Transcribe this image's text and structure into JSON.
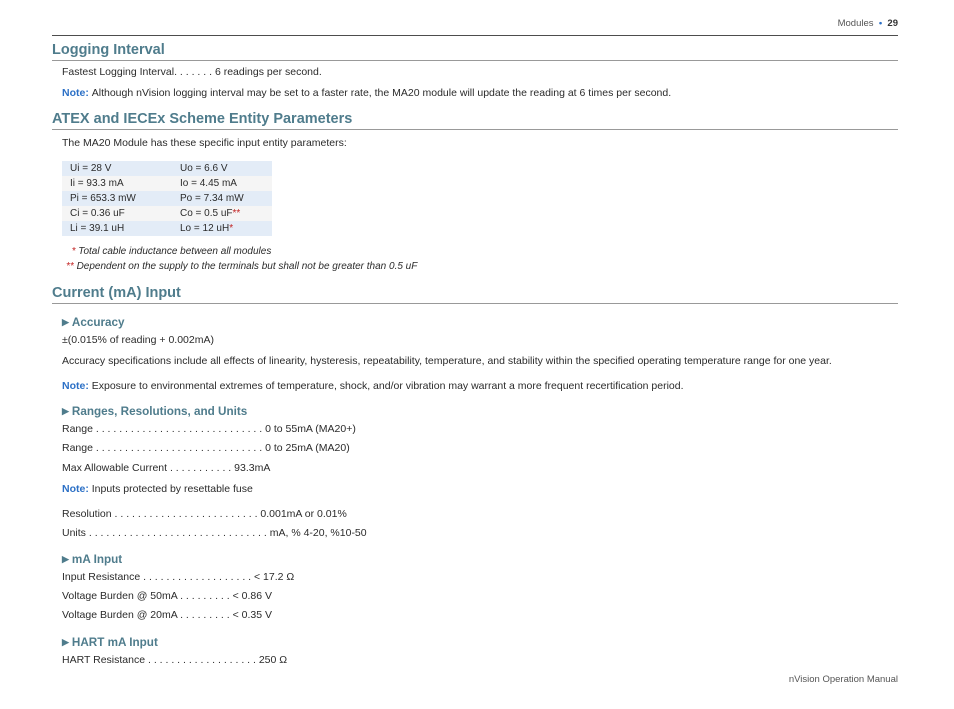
{
  "header": {
    "label_modules": "Modules",
    "dot": "•",
    "page_number": "29"
  },
  "sections": {
    "logging": {
      "title": "Logging Interval",
      "line1_label": "Fastest Logging Interval",
      "line1_dots": ". . . . . . .",
      "line1_value": "6 readings per second.",
      "note_text": "Although nVision logging interval may be set to a faster rate, the MA20 module will update the reading at 6 times per second."
    },
    "atex": {
      "title": "ATEX and IECEx Scheme Entity Parameters",
      "intro": "The MA20 Module has these specific input entity parameters:",
      "rows": [
        {
          "l": "Ui   =   28 V",
          "r": "Uo =   6.6 V",
          "bg": "#e3ecf7"
        },
        {
          "l": "Ii    =   93.3 mA",
          "r": "Io  =   4.45 mA",
          "bg": "#f5f5f5"
        },
        {
          "l": "Pi   =   653.3 mW",
          "r": "Po =   7.34 mW",
          "bg": "#e3ecf7"
        },
        {
          "l": "Ci   =   0.36 uF",
          "r": "Co =   0.5 uF",
          "bg": "#f5f5f5",
          "rstar": "**"
        },
        {
          "l": "Li   =   39.1 uH",
          "r": "Lo =   12 uH",
          "bg": "#e3ecf7",
          "rstar": "*"
        }
      ],
      "foot_single": "Total cable inductance between all modules",
      "foot_double": "Dependent on the supply to the terminals but shall not be greater than 0.5 uF"
    },
    "current": {
      "title": "Current (mA) Input",
      "accuracy": {
        "title": "Accuracy",
        "val": "±(0.015% of reading + 0.002mA)",
        "explain": "Accuracy specifications include all effects of linearity, hysteresis, repeatability, temperature, and stability within the specified operating temperature range for one year.",
        "note": "Exposure to environmental extremes of temperature, shock, and/or vibration may warrant a more frequent recertification period."
      },
      "ranges": {
        "title": "Ranges, Resolutions, and Units",
        "r1l": "Range",
        "r1v": "0 to 55mA (MA20+)",
        "r2l": "Range",
        "r2v": "0 to 25mA (MA20)",
        "maxl": "Max Allowable Current",
        "maxv": "93.3mA",
        "note": "Inputs protected by resettable fuse",
        "reslabel": "Resolution",
        "resval": "0.001mA or 0.01%",
        "unitslabel": "Units",
        "unitsval": "mA, % 4-20, %10-50"
      },
      "mainput": {
        "title": "mA Input",
        "irl": "Input Resistance",
        "irv": "< 17.2 Ω",
        "vb50l": "Voltage Burden @ 50mA",
        "vb50v": "< 0.86 V",
        "vb20l": "Voltage Burden @ 20mA",
        "vb20v": "< 0.35 V"
      },
      "hart": {
        "title": "HART mA Input",
        "hrl": "HART Resistance",
        "hrv": "250 Ω"
      }
    }
  },
  "labels": {
    "note": "Note:  "
  },
  "dots": {
    "d29": " . . . . . . . . . . . . . . . . . . . . . . . . . . . . . ",
    "d19": " . . . . . . . . . . . . . . . . . . . ",
    "d25": " . . . . . . . . . . . . . . . . . . . . . . . . . ",
    "d11": " . . . . . . . . . . . ",
    "d9": " . . . . . . . . . ",
    "d31": " . . . . . . . . . . . . . . . . . . . . . . . . . . . . . . . "
  },
  "footer": {
    "text": "nVision Operation Manual"
  }
}
